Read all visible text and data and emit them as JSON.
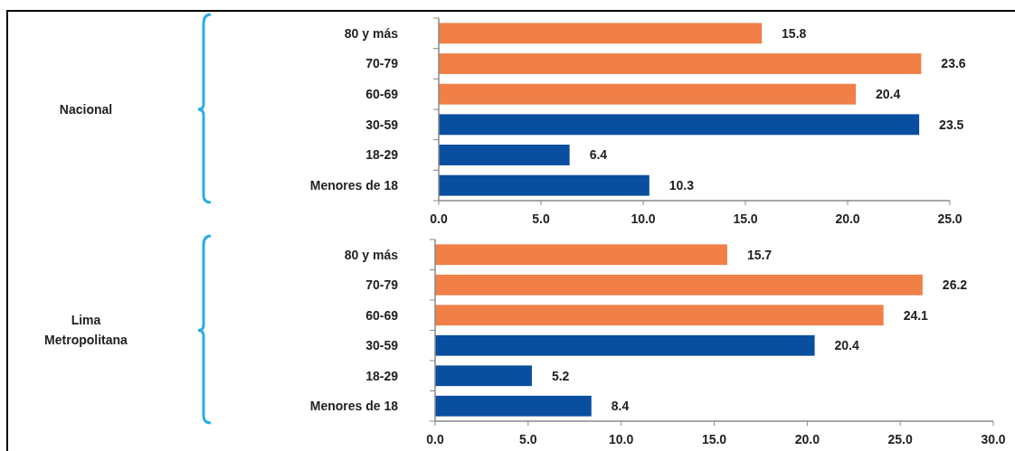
{
  "chart_data": [
    {
      "type": "bar",
      "orientation": "horizontal",
      "ylabel": "Nacional",
      "categories": [
        "80 y más",
        "70-79",
        "60-69",
        "30-59",
        "18-29",
        "Menores de 18"
      ],
      "values": [
        15.8,
        23.6,
        20.4,
        23.5,
        6.4,
        10.3
      ],
      "colors": [
        "#f08048",
        "#f08048",
        "#f08048",
        "#0a4ea0",
        "#0a4ea0",
        "#0a4ea0"
      ],
      "xlim": [
        0,
        25
      ],
      "xticks": [
        {
          "value": 0,
          "label": "0.0"
        },
        {
          "value": 5,
          "label": "5.0"
        },
        {
          "value": 10,
          "label": "10.0"
        },
        {
          "value": 15,
          "label": "15.0"
        },
        {
          "value": 20,
          "label": "20.0"
        },
        {
          "value": 25,
          "label": "25.0"
        }
      ],
      "data_labels": true
    },
    {
      "type": "bar",
      "orientation": "horizontal",
      "ylabel": "Lima Metropolitana",
      "categories": [
        "80 y más",
        "70-79",
        "60-69",
        "30-59",
        "18-29",
        "Menores de 18"
      ],
      "values": [
        15.7,
        26.2,
        24.1,
        20.4,
        5.2,
        8.4
      ],
      "colors": [
        "#f08048",
        "#f08048",
        "#f08048",
        "#0a4ea0",
        "#0a4ea0",
        "#0a4ea0"
      ],
      "xlim": [
        0,
        30
      ],
      "xticks": [
        {
          "value": 0,
          "label": "0.0"
        },
        {
          "value": 5,
          "label": "5.0"
        },
        {
          "value": 10,
          "label": "10.0"
        },
        {
          "value": 15,
          "label": "15.0"
        },
        {
          "value": 20,
          "label": "20.0"
        },
        {
          "value": 25,
          "label": "25.0"
        },
        {
          "value": 30,
          "label": "30.0"
        }
      ],
      "data_labels": true
    }
  ]
}
